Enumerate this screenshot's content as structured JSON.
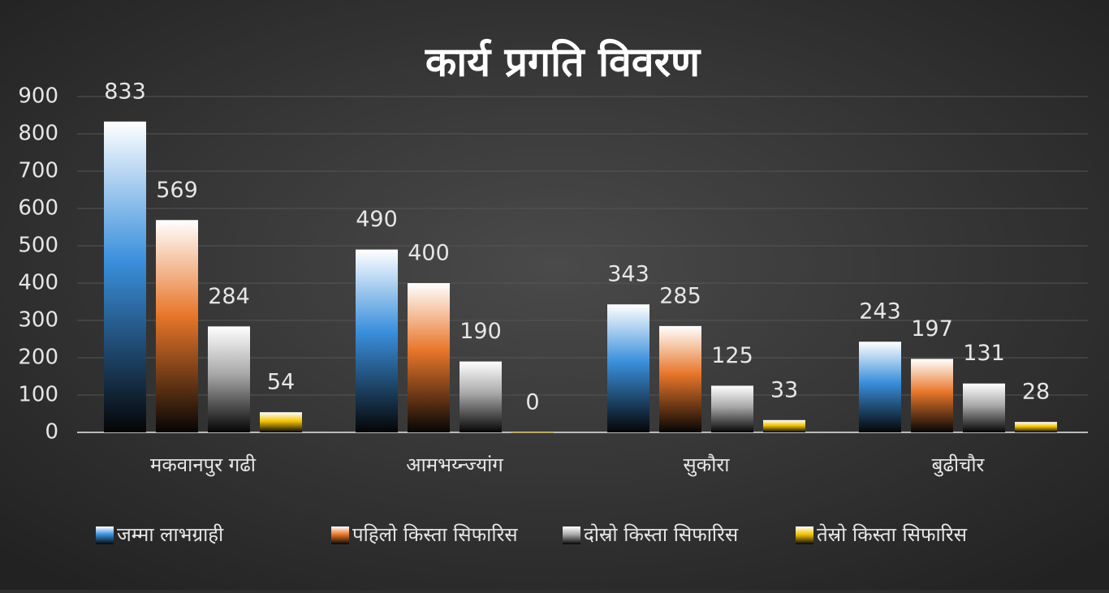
{
  "chart_data": {
    "type": "bar",
    "title": "कार्य प्रगति विवरण",
    "categories": [
      "मकवानपुर गढी",
      "आमभय्न्ज्यांग",
      "सुकौरा",
      "बुढीचौर"
    ],
    "series": [
      {
        "name": "जम्मा लाभग्राही",
        "color": "#3a8fdc",
        "values": [
          833,
          490,
          343,
          243
        ]
      },
      {
        "name": "पहिलो किस्ता सिफारिस",
        "color": "#e8762a",
        "values": [
          569,
          400,
          285,
          197
        ]
      },
      {
        "name": "दोस्रो किस्ता सिफारिस",
        "color": "#a8a8a8",
        "values": [
          284,
          190,
          125,
          131
        ]
      },
      {
        "name": "तेस्रो किस्ता सिफारिस",
        "color": "#f2c200",
        "values": [
          54,
          0,
          33,
          28
        ]
      }
    ],
    "ylim": [
      0,
      900
    ],
    "yticks": [
      0,
      100,
      200,
      300,
      400,
      500,
      600,
      700,
      800,
      900
    ],
    "grid": true,
    "legend": "bottom"
  }
}
